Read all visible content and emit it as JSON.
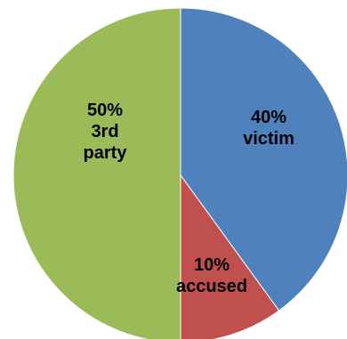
{
  "chart_data": {
    "type": "pie",
    "slices": [
      {
        "label": "victim",
        "value": 40,
        "percent_label": "40%",
        "color": "#4F81BD"
      },
      {
        "label": "accused",
        "value": 10,
        "percent_label": "10%",
        "color": "#C0504D"
      },
      {
        "label": "3rd party",
        "value": 50,
        "percent_label": "50%",
        "color": "#9BBB59"
      }
    ],
    "label_lines": [
      [
        "40%",
        "victim"
      ],
      [
        "10%",
        "accused"
      ],
      [
        "50%",
        "3rd",
        "party"
      ]
    ],
    "start_angle": "12 o'clock",
    "direction": "clockwise",
    "legend": "none"
  }
}
